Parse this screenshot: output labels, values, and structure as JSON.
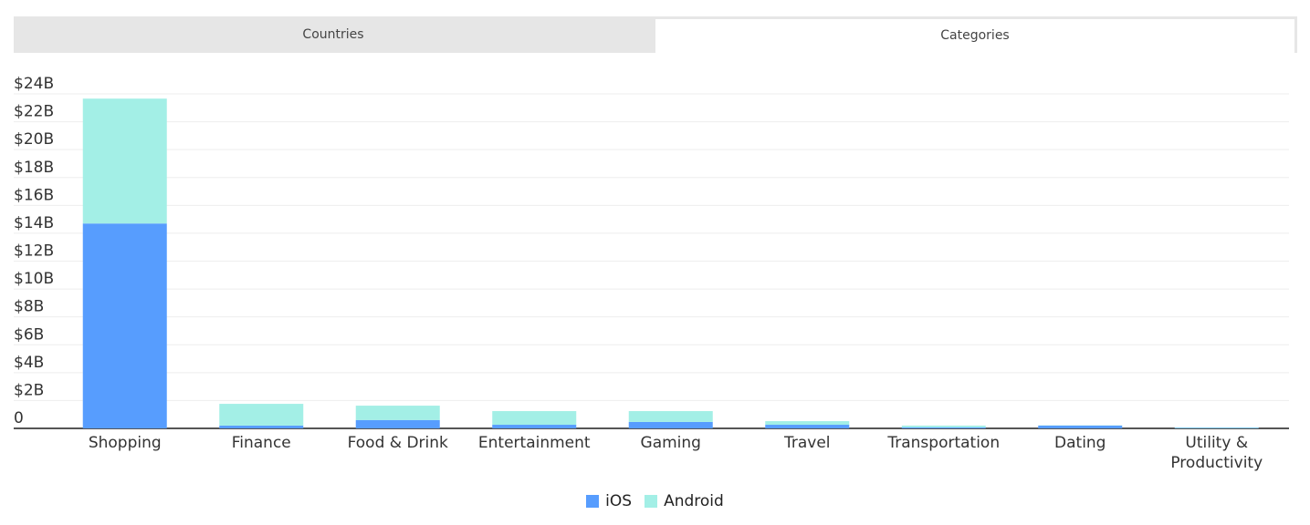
{
  "tabs": [
    "Countries",
    "Categories"
  ],
  "chart_data": {
    "type": "stacked-bar",
    "categories": [
      "Shopping",
      "Finance",
      "Food & Drink",
      "Entertainment",
      "Gaming",
      "Travel",
      "Transportation",
      "Dating",
      "Utility & Productivity"
    ],
    "series": [
      {
        "name": "iOS",
        "color": "#579dfe",
        "values": [
          14.7,
          0.2,
          0.6,
          0.26,
          0.46,
          0.26,
          0.07,
          0.2,
          0.03
        ]
      },
      {
        "name": "Android",
        "color": "#a3efe6",
        "values": [
          8.96,
          1.56,
          1.03,
          0.98,
          0.78,
          0.26,
          0.13,
          0.02,
          0.04
        ]
      }
    ],
    "ylim": [
      0,
      24
    ],
    "yticks": [
      0,
      {
        "value": 2,
        "label": "$2B"
      },
      {
        "value": 4,
        "label": "$4B"
      },
      {
        "value": 6,
        "label": "$6B"
      },
      {
        "value": 8,
        "label": "$8B"
      },
      {
        "value": 10,
        "label": "$10B"
      },
      {
        "value": 12,
        "label": "$12B"
      },
      {
        "value": 14,
        "label": "$14B"
      },
      {
        "value": 16,
        "label": "$16B"
      },
      {
        "value": 18,
        "label": "$18B"
      },
      {
        "value": 20,
        "label": "$20B"
      },
      {
        "value": 22,
        "label": "$22B"
      },
      {
        "value": 24,
        "label": "$24B"
      }
    ],
    "grid": true
  }
}
